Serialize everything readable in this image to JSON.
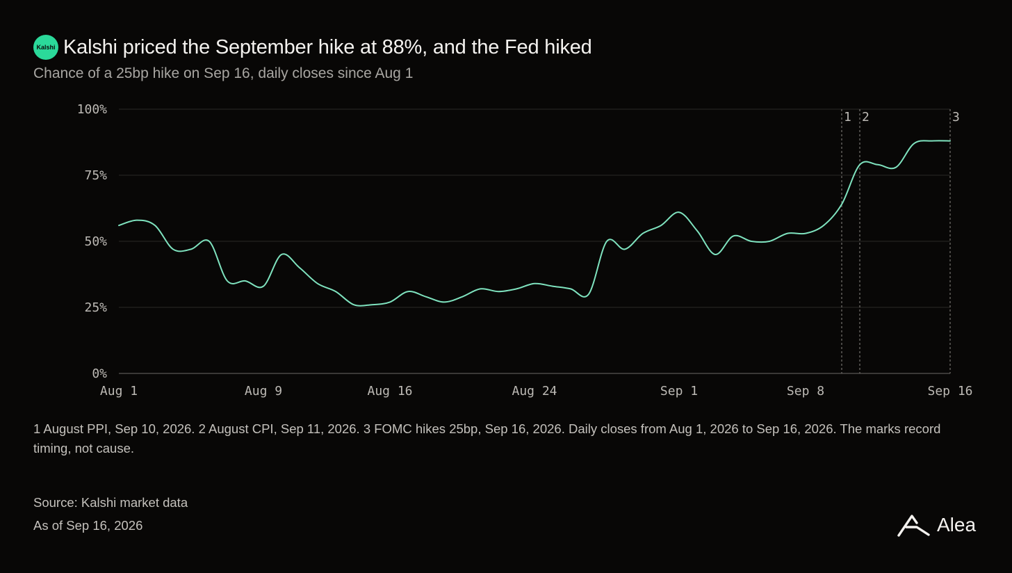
{
  "header": {
    "brand_badge": "Kalshi",
    "title": "Kalshi priced the September hike at 88%, and the Fed hiked",
    "subtitle": "Chance of a 25bp hike on Sep 16, daily closes since Aug 1"
  },
  "colors": {
    "background": "#080706",
    "line": "#7fe3bf",
    "brand": "#2bd99a",
    "gridline": "#2a2826",
    "text_muted": "#bdbab5"
  },
  "chart_data": {
    "type": "line",
    "title": "",
    "xlabel": "",
    "ylabel": "",
    "ylim": [
      0,
      100
    ],
    "y_ticks": [
      0,
      25,
      50,
      75,
      100
    ],
    "y_tick_labels": [
      "0%",
      "25%",
      "50%",
      "75%",
      "100%"
    ],
    "x_tick_labels": [
      "Aug 1",
      "Aug 9",
      "Aug 16",
      "Aug 24",
      "Sep 1",
      "Sep 8",
      "Sep 16"
    ],
    "x_tick_dates": [
      "2026-08-01",
      "2026-08-09",
      "2026-08-16",
      "2026-08-24",
      "2026-09-01",
      "2026-09-08",
      "2026-09-16"
    ],
    "grid": true,
    "series": [
      {
        "values": [
          {
            "date": "2026-08-01",
            "value": 56
          },
          {
            "date": "2026-08-02",
            "value": 58
          },
          {
            "date": "2026-08-03",
            "value": 56
          },
          {
            "date": "2026-08-04",
            "value": 47
          },
          {
            "date": "2026-08-05",
            "value": 47
          },
          {
            "date": "2026-08-06",
            "value": 50
          },
          {
            "date": "2026-08-07",
            "value": 35
          },
          {
            "date": "2026-08-08",
            "value": 35
          },
          {
            "date": "2026-08-09",
            "value": 33
          },
          {
            "date": "2026-08-10",
            "value": 45
          },
          {
            "date": "2026-08-11",
            "value": 40
          },
          {
            "date": "2026-08-12",
            "value": 34
          },
          {
            "date": "2026-08-13",
            "value": 31
          },
          {
            "date": "2026-08-14",
            "value": 26
          },
          {
            "date": "2026-08-15",
            "value": 26
          },
          {
            "date": "2026-08-16",
            "value": 27
          },
          {
            "date": "2026-08-17",
            "value": 31
          },
          {
            "date": "2026-08-18",
            "value": 29
          },
          {
            "date": "2026-08-19",
            "value": 27
          },
          {
            "date": "2026-08-20",
            "value": 29
          },
          {
            "date": "2026-08-21",
            "value": 32
          },
          {
            "date": "2026-08-22",
            "value": 31
          },
          {
            "date": "2026-08-23",
            "value": 32
          },
          {
            "date": "2026-08-24",
            "value": 34
          },
          {
            "date": "2026-08-25",
            "value": 33
          },
          {
            "date": "2026-08-26",
            "value": 32
          },
          {
            "date": "2026-08-27",
            "value": 30
          },
          {
            "date": "2026-08-28",
            "value": 50
          },
          {
            "date": "2026-08-29",
            "value": 47
          },
          {
            "date": "2026-08-30",
            "value": 53
          },
          {
            "date": "2026-08-31",
            "value": 56
          },
          {
            "date": "2026-09-01",
            "value": 61
          },
          {
            "date": "2026-09-02",
            "value": 54
          },
          {
            "date": "2026-09-03",
            "value": 45
          },
          {
            "date": "2026-09-04",
            "value": 52
          },
          {
            "date": "2026-09-05",
            "value": 50
          },
          {
            "date": "2026-09-06",
            "value": 50
          },
          {
            "date": "2026-09-07",
            "value": 53
          },
          {
            "date": "2026-09-08",
            "value": 53
          },
          {
            "date": "2026-09-09",
            "value": 56
          },
          {
            "date": "2026-09-10",
            "value": 64
          },
          {
            "date": "2026-09-11",
            "value": 79
          },
          {
            "date": "2026-09-12",
            "value": 79
          },
          {
            "date": "2026-09-13",
            "value": 78
          },
          {
            "date": "2026-09-14",
            "value": 87
          },
          {
            "date": "2026-09-15",
            "value": 88
          },
          {
            "date": "2026-09-16",
            "value": 88
          }
        ]
      }
    ],
    "annotations": [
      {
        "label": "1",
        "date": "2026-09-10"
      },
      {
        "label": "2",
        "date": "2026-09-11"
      },
      {
        "label": "3",
        "date": "2026-09-16"
      }
    ]
  },
  "footnote": "1 August PPI, Sep 10, 2026. 2 August CPI, Sep 11, 2026. 3 FOMC hikes 25bp, Sep 16, 2026. Daily closes from Aug 1, 2026 to Sep 16, 2026. The marks record timing, not cause.",
  "source": "Source: Kalshi market data",
  "as_of": "As of Sep 16, 2026",
  "footer_brand": {
    "name": "Alea",
    "icon": "alea-logo-icon"
  }
}
